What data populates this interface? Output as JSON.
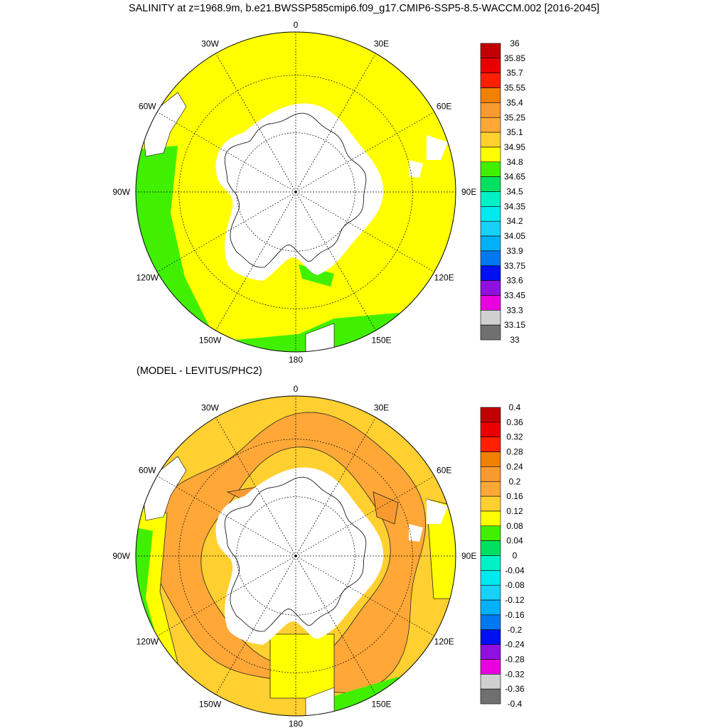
{
  "title": "SALINITY at z=1968.9m, b.e21.BWSSP585cmip6.f09_g17.CMIP6-SSP5-8.5-WACCM.002 [2016-2045]",
  "subtitle": "(MODEL - LEVITUS/PHC2)",
  "colors": {
    "land": "#ffffff",
    "coast": "#000000",
    "grid": "#000000"
  },
  "chart_data": [
    {
      "type": "heatmap",
      "projection": "south-polar-stereographic",
      "variable": "salinity",
      "longitude_labels": [
        "0",
        "30E",
        "60E",
        "90E",
        "120E",
        "150E",
        "180",
        "150W",
        "120W",
        "90W",
        "60W",
        "30W"
      ],
      "dominant_field_color": "#ffff00",
      "dominant_field_range": [
        34.8,
        34.95
      ],
      "colorbar": {
        "labels": [
          "36",
          "35.85",
          "35.7",
          "35.55",
          "35.4",
          "35.25",
          "35.1",
          "34.95",
          "34.8",
          "34.65",
          "34.5",
          "34.35",
          "34.2",
          "34.05",
          "33.9",
          "33.75",
          "33.6",
          "33.45",
          "33.3",
          "33.15",
          "33"
        ],
        "colors": [
          "#c00000",
          "#e80000",
          "#ff2000",
          "#f08000",
          "#f89a30",
          "#ffa838",
          "#ffd030",
          "#ffff00",
          "#40f000",
          "#00e060",
          "#00f0c8",
          "#00e8f0",
          "#18d0f8",
          "#00b0f8",
          "#0078f0",
          "#0010f0",
          "#9010e0",
          "#e800e0",
          "#d0d0d0",
          "#707070"
        ]
      }
    },
    {
      "type": "heatmap",
      "projection": "south-polar-stereographic",
      "variable": "salinity difference",
      "longitude_labels": [
        "0",
        "30E",
        "60E",
        "90E",
        "120E",
        "150E",
        "180",
        "150W",
        "120W",
        "90W",
        "60W",
        "30W"
      ],
      "dominant_field_color": "#ffd030",
      "dominant_field_range": [
        0.12,
        0.16
      ],
      "colorbar": {
        "labels": [
          "0.4",
          "0.36",
          "0.32",
          "0.28",
          "0.24",
          "0.2",
          "0.16",
          "0.12",
          "0.08",
          "0.04",
          "0",
          "-0.04",
          "-0.08",
          "-0.12",
          "-0.16",
          "-0.2",
          "-0.24",
          "-0.28",
          "-0.32",
          "-0.36",
          "-0.4"
        ],
        "colors": [
          "#c00000",
          "#e80000",
          "#ff2000",
          "#f08000",
          "#f89a30",
          "#ffa838",
          "#ffd030",
          "#ffff00",
          "#40f000",
          "#00e060",
          "#00f0c8",
          "#00e8f0",
          "#18d0f8",
          "#00b0f8",
          "#0078f0",
          "#0010f0",
          "#9010e0",
          "#e800e0",
          "#d0d0d0",
          "#707070"
        ]
      }
    }
  ]
}
